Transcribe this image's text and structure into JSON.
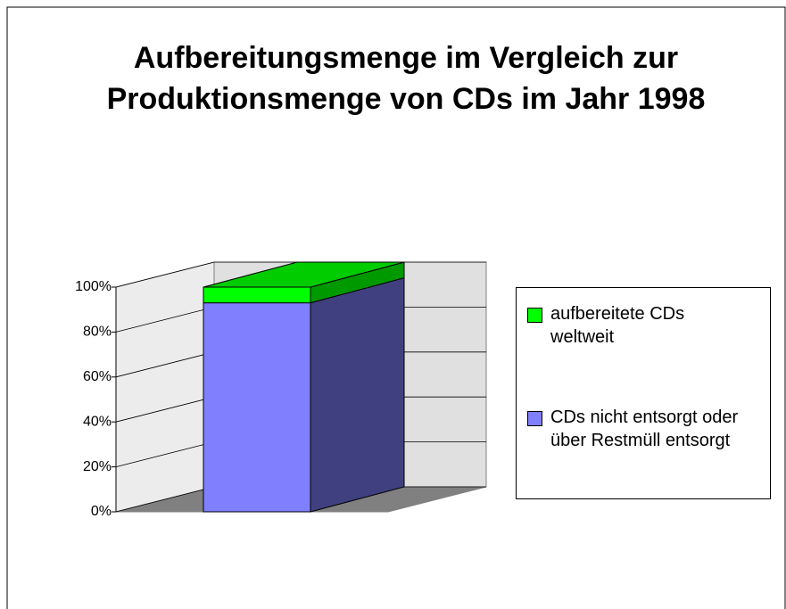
{
  "chart_data": {
    "type": "bar3d_stacked",
    "title": "Aufbereitungsmenge im Vergleich zur Produktionsmenge von CDs im Jahr 1998",
    "categories": [
      null
    ],
    "series": [
      {
        "name": "CDs nicht entsorgt oder über Restmüll entsorgt",
        "color": "#8080ff",
        "values": [
          93
        ]
      },
      {
        "name": "aufbereitete CDs weltweit",
        "color": "#00ff00",
        "values": [
          7
        ]
      }
    ],
    "ylim": [
      0,
      100
    ],
    "yticks": [
      {
        "value": 0,
        "label": "0%"
      },
      {
        "value": 20,
        "label": "20%"
      },
      {
        "value": 40,
        "label": "40%"
      },
      {
        "value": 60,
        "label": "60%"
      },
      {
        "value": 80,
        "label": "80%"
      },
      {
        "value": 100,
        "label": "100%"
      }
    ],
    "grid": true,
    "legend": "right"
  }
}
